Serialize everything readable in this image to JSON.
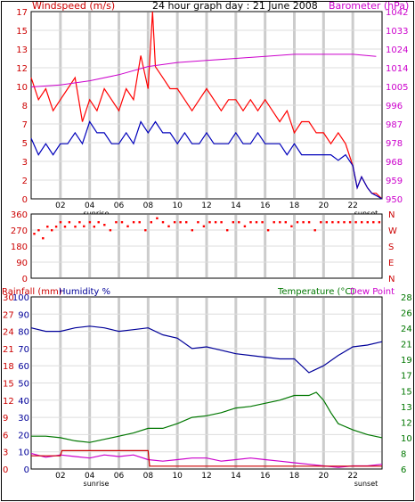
{
  "header": {
    "left_label": "Windspeed (m/s)",
    "title": "24 hour graph day : 21 June 2008",
    "right_label": "Barometer (hPa)"
  },
  "bottom_header": {
    "rainfall_label": "Rainfall (mm)",
    "humidity_label": "Humidity %",
    "temperature_label": "Temperature (°C)",
    "dewpoint_label": "Dew Point"
  },
  "colors": {
    "wind": "#ff0000",
    "gust": "#0000bb",
    "barometer": "#cc00cc",
    "humidity": "#000099",
    "temperature": "#007700",
    "dewpoint": "#cc00cc",
    "rain": "#cc0000",
    "grid": "#cccccc",
    "plot_bg": "#ffffff"
  },
  "chart_data": [
    {
      "type": "line",
      "x_ticks": [
        "02",
        "04",
        "06",
        "08",
        "10",
        "12",
        "14",
        "16",
        "18",
        "20",
        "22"
      ],
      "sunrise_label": "sunrise",
      "sunset_label": "sunset",
      "y_left_ticks": [
        "0",
        "2",
        "3",
        "5",
        "7",
        "8",
        "10",
        "12",
        "13",
        "15",
        "17"
      ],
      "y_right_ticks": [
        "950",
        "959",
        "968",
        "978",
        "987",
        "996",
        "1005",
        "1014",
        "1024",
        "1033",
        "1042"
      ],
      "ylim": [
        0,
        17
      ],
      "ylim_right": [
        950,
        1042
      ],
      "xlim": [
        0,
        24
      ],
      "series": [
        {
          "key": "wind",
          "x": [
            0.0,
            0.5,
            1.0,
            1.5,
            2.0,
            2.5,
            3.0,
            3.5,
            4.0,
            4.5,
            5.0,
            5.5,
            6.0,
            6.5,
            7.0,
            7.5,
            8.0,
            8.3,
            8.5,
            9.0,
            9.5,
            10.0,
            10.5,
            11.0,
            11.5,
            12.0,
            12.5,
            13.0,
            13.5,
            14.0,
            14.5,
            15.0,
            15.5,
            16.0,
            16.5,
            17.0,
            17.5,
            18.0,
            18.5,
            19.0,
            19.5,
            20.0,
            20.5,
            21.0,
            21.5,
            22.0,
            22.3,
            22.6,
            23.0,
            23.3,
            23.6,
            24.0
          ],
          "y": [
            11,
            9,
            10,
            8,
            9,
            10,
            11,
            7,
            9,
            8,
            10,
            9,
            8,
            10,
            9,
            13,
            10,
            17,
            12,
            11,
            10,
            10,
            9,
            8,
            9,
            10,
            9,
            8,
            9,
            9,
            8,
            9,
            8,
            9,
            8,
            7,
            8,
            6,
            7,
            7,
            6,
            6,
            5,
            6,
            5,
            3,
            1,
            2,
            1,
            0.5,
            0.5,
            0
          ]
        },
        {
          "key": "gust",
          "x": [
            0.0,
            0.5,
            1.0,
            1.5,
            2.0,
            2.5,
            3.0,
            3.5,
            4.0,
            4.5,
            5.0,
            5.5,
            6.0,
            6.5,
            7.0,
            7.5,
            8.0,
            8.5,
            9.0,
            9.5,
            10.0,
            10.5,
            11.0,
            11.5,
            12.0,
            12.5,
            13.0,
            13.5,
            14.0,
            14.5,
            15.0,
            15.5,
            16.0,
            16.5,
            17.0,
            17.5,
            18.0,
            18.5,
            19.0,
            19.5,
            20.0,
            20.5,
            21.0,
            21.5,
            22.0,
            22.3,
            22.6,
            23.0,
            23.3,
            23.6,
            24.0
          ],
          "y": [
            5.5,
            4,
            5,
            4,
            5,
            5,
            6,
            5,
            7,
            6,
            6,
            5,
            5,
            6,
            5,
            7,
            6,
            7,
            6,
            6,
            5,
            6,
            5,
            5,
            6,
            5,
            5,
            5,
            6,
            5,
            5,
            6,
            5,
            5,
            5,
            4,
            5,
            4,
            4,
            4,
            4,
            4,
            3.5,
            4,
            3,
            1,
            2,
            1,
            0.5,
            0.3,
            0
          ]
        },
        {
          "key": "barometer",
          "x": [
            0,
            2,
            4,
            6,
            8,
            10,
            12,
            14,
            16,
            18,
            20,
            22,
            23.6
          ],
          "y": [
            1005,
            1006,
            1008,
            1011,
            1015,
            1017,
            1018,
            1019,
            1020,
            1021,
            1021,
            1021,
            1020
          ]
        }
      ]
    },
    {
      "type": "scatter",
      "title": "",
      "y_left_ticks": [
        "0",
        "90",
        "180",
        "270",
        "360"
      ],
      "y_right_ticks": [
        "N",
        "E",
        "S",
        "W",
        "N"
      ],
      "ylim": [
        0,
        360
      ],
      "xlim": [
        0,
        24
      ],
      "series": [
        {
          "key": "direction",
          "x": [
            0.2,
            0.5,
            0.8,
            1.1,
            1.4,
            1.7,
            2.0,
            2.3,
            2.6,
            3.0,
            3.3,
            3.6,
            4.0,
            4.3,
            4.6,
            5.0,
            5.4,
            5.8,
            6.2,
            6.6,
            7.0,
            7.4,
            7.8,
            8.2,
            8.6,
            9.0,
            9.4,
            9.8,
            10.2,
            10.6,
            11.0,
            11.4,
            11.8,
            12.2,
            12.6,
            13.0,
            13.4,
            13.8,
            14.2,
            14.6,
            15.0,
            15.4,
            15.8,
            16.2,
            16.6,
            17.0,
            17.4,
            17.8,
            18.2,
            18.6,
            19.0,
            19.4,
            19.8,
            20.2,
            20.6,
            21.0,
            21.4,
            21.8,
            22.2,
            22.6,
            23.0,
            23.4,
            23.8
          ],
          "y": [
            250,
            270,
            225,
            290,
            270,
            290,
            315,
            290,
            315,
            290,
            315,
            292,
            315,
            290,
            315,
            300,
            270,
            315,
            315,
            292,
            315,
            315,
            270,
            315,
            337,
            315,
            292,
            315,
            315,
            315,
            270,
            315,
            292,
            315,
            315,
            315,
            270,
            315,
            315,
            292,
            315,
            315,
            315,
            270,
            315,
            315,
            315,
            292,
            315,
            315,
            315,
            270,
            315,
            315,
            315,
            315,
            315,
            315,
            315,
            315,
            315,
            315,
            315
          ]
        }
      ]
    },
    {
      "type": "line",
      "x_ticks": [
        "02",
        "04",
        "06",
        "08",
        "10",
        "12",
        "14",
        "16",
        "18",
        "20",
        "22"
      ],
      "sunrise_label": "sunrise",
      "sunset_label": "sunset",
      "y_rain_ticks": [
        "0",
        "3",
        "6",
        "9",
        "12",
        "15",
        "18",
        "21",
        "24",
        "27",
        "30"
      ],
      "y_humidity_ticks": [
        "0",
        "10",
        "20",
        "30",
        "40",
        "50",
        "60",
        "70",
        "80",
        "90",
        "100"
      ],
      "y_temp_ticks": [
        "6",
        "8",
        "10",
        "12",
        "13",
        "15",
        "17",
        "19",
        "21",
        "24",
        "26",
        "28"
      ],
      "ylim_humidity": [
        0,
        100
      ],
      "ylim_temp": [
        6,
        28
      ],
      "xlim": [
        0,
        24
      ],
      "series": [
        {
          "key": "humidity",
          "x": [
            0,
            1,
            2,
            3,
            4,
            5,
            6,
            7,
            8,
            9,
            10,
            11,
            12,
            13,
            14,
            15,
            16,
            17,
            18,
            19,
            19.5,
            20,
            21,
            22,
            23,
            24
          ],
          "y": [
            82,
            80,
            80,
            82,
            83,
            82,
            80,
            81,
            82,
            78,
            76,
            70,
            71,
            69,
            67,
            66,
            65,
            64,
            64,
            56,
            58,
            60,
            66,
            71,
            72,
            74
          ]
        },
        {
          "key": "temperature",
          "x": [
            0,
            1,
            2,
            3,
            4,
            5,
            6,
            7,
            8,
            9,
            10,
            11,
            12,
            13,
            14,
            15,
            16,
            17,
            18,
            19,
            19.5,
            20,
            20.5,
            21,
            22,
            23,
            24
          ],
          "y": [
            10.2,
            10.2,
            10,
            9.6,
            9.4,
            9.8,
            10.2,
            10.6,
            11.2,
            11.2,
            11.8,
            12.6,
            12.8,
            13.2,
            13.8,
            14,
            14.4,
            14.8,
            15.4,
            15.4,
            15.8,
            14.8,
            13.2,
            11.8,
            11,
            10.4,
            10
          ]
        },
        {
          "key": "dewpoint",
          "x": [
            0,
            1,
            2,
            3,
            4,
            5,
            6,
            7,
            8,
            9,
            10,
            11,
            12,
            13,
            14,
            15,
            16,
            17,
            18,
            19,
            20,
            21,
            22,
            23,
            24
          ],
          "y": [
            8,
            7.5,
            7.8,
            7.6,
            7.4,
            7.8,
            7.6,
            7.8,
            7.2,
            7,
            7.2,
            7.4,
            7.4,
            7,
            7.2,
            7.4,
            7.2,
            7,
            6.8,
            6.6,
            6.4,
            6.2,
            6.4,
            6.4,
            6.6
          ]
        },
        {
          "key": "rain",
          "x": [
            0,
            2,
            2.1,
            8,
            8.1,
            24
          ],
          "y": [
            2.3,
            2.3,
            3.2,
            3.2,
            0.5,
            0.5
          ]
        }
      ]
    }
  ]
}
